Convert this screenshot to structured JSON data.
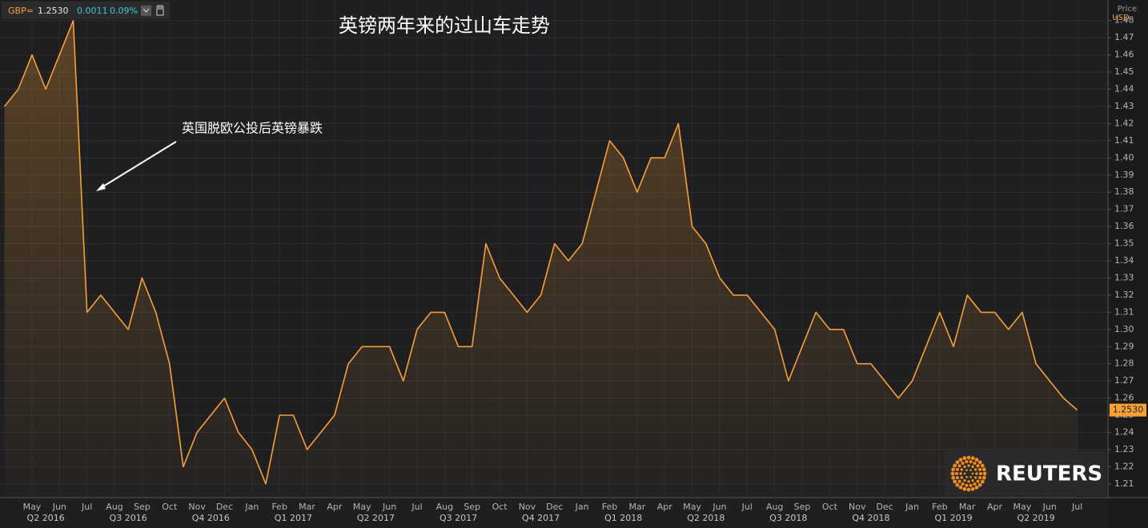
{
  "chart_data": {
    "type": "line",
    "title": "英镑两年来的过山车走势",
    "annotation": "英国脱欧公投后英镑暴跌",
    "ticker": "GBP=",
    "price": "1.2530",
    "change": "0.0011",
    "change_pct": "0.09%",
    "axis_title": "Price",
    "axis_unit": "USD",
    "logo": "REUTERS",
    "categories": [
      null,
      null,
      null,
      null,
      null,
      null,
      null,
      null,
      null,
      null,
      null,
      null,
      null,
      null,
      null,
      null,
      null,
      null,
      null,
      null,
      null,
      null,
      null,
      null,
      null,
      null,
      null,
      null,
      null,
      null,
      null,
      null,
      null,
      null,
      null,
      null,
      null,
      null,
      null,
      null,
      null,
      null,
      null,
      null,
      null,
      null,
      null,
      null,
      null,
      null,
      null,
      null,
      null,
      null,
      null,
      null,
      null,
      null,
      null,
      null,
      null,
      null,
      null,
      null,
      null,
      null,
      null,
      null,
      null,
      null,
      null,
      null,
      null,
      null,
      null,
      null,
      null,
      null,
      null
    ],
    "series": [
      {
        "name": "GBP=",
        "color": "#f7a035",
        "values": [
          1.43,
          1.44,
          1.46,
          1.44,
          1.46,
          1.48,
          1.31,
          1.32,
          1.31,
          1.3,
          1.33,
          1.31,
          1.28,
          1.22,
          1.24,
          1.25,
          1.26,
          1.24,
          1.23,
          1.21,
          1.25,
          1.25,
          1.23,
          1.24,
          1.25,
          1.28,
          1.29,
          1.29,
          1.29,
          1.27,
          1.3,
          1.31,
          1.31,
          1.29,
          1.29,
          1.35,
          1.33,
          1.32,
          1.31,
          1.32,
          1.35,
          1.34,
          1.35,
          1.38,
          1.41,
          1.4,
          1.38,
          1.4,
          1.4,
          1.42,
          1.36,
          1.35,
          1.33,
          1.32,
          1.32,
          1.31,
          1.3,
          1.27,
          1.29,
          1.31,
          1.3,
          1.3,
          1.28,
          1.28,
          1.27,
          1.26,
          1.27,
          1.29,
          1.31,
          1.29,
          1.32,
          1.31,
          1.31,
          1.3,
          1.31,
          1.28,
          1.27,
          1.26,
          1.253
        ]
      }
    ],
    "ylim": [
      1.202,
      1.492
    ],
    "yticks": [
      1.21,
      1.22,
      1.23,
      1.24,
      1.25,
      1.26,
      1.27,
      1.28,
      1.29,
      {
        "value": 1.3,
        "label": "1.30"
      },
      1.31,
      1.32,
      1.33,
      1.34,
      1.35,
      1.36,
      1.37,
      1.38,
      1.39,
      {
        "value": 1.4,
        "label": "1.40"
      },
      1.41,
      1.42,
      1.43,
      1.44,
      1.45,
      1.46,
      1.47,
      1.48
    ],
    "xticks": [
      {
        "value": 2,
        "label": "May"
      },
      {
        "value": 4,
        "label": "Jun"
      },
      {
        "value": 6,
        "label": "Jul"
      },
      {
        "value": 8,
        "label": "Aug"
      },
      {
        "value": 10,
        "label": "Sep"
      },
      {
        "value": 12,
        "label": "Oct"
      },
      {
        "value": 14,
        "label": "Nov"
      },
      {
        "value": 16,
        "label": "Dec"
      },
      {
        "value": 18,
        "label": "Jan"
      },
      {
        "value": 20,
        "label": "Feb"
      },
      {
        "value": 22,
        "label": "Mar"
      },
      {
        "value": 24,
        "label": "Apr"
      },
      {
        "value": 26,
        "label": "May"
      },
      {
        "value": 28,
        "label": "Jun"
      },
      {
        "value": 30,
        "label": "Jul"
      },
      {
        "value": 32,
        "label": "Aug"
      },
      {
        "value": 34,
        "label": "Sep"
      },
      {
        "value": 36,
        "label": "Oct"
      },
      {
        "value": 38,
        "label": "Nov"
      },
      {
        "value": 40,
        "label": "Dec"
      },
      {
        "value": 42,
        "label": "Jan"
      },
      {
        "value": 44,
        "label": "Feb"
      },
      {
        "value": 46,
        "label": "Mar"
      },
      {
        "value": 48,
        "label": "Apr"
      },
      {
        "value": 50,
        "label": "May"
      },
      {
        "value": 52,
        "label": "Jun"
      },
      {
        "value": 54,
        "label": "Jul"
      },
      {
        "value": 56,
        "label": "Aug"
      },
      {
        "value": 58,
        "label": "Sep"
      },
      {
        "value": 60,
        "label": "Oct"
      },
      {
        "value": 62,
        "label": "Nov"
      },
      {
        "value": 64,
        "label": "Dec"
      },
      {
        "value": 66,
        "label": "Jan"
      },
      {
        "value": 68,
        "label": "Feb"
      },
      {
        "value": 70,
        "label": "Mar"
      },
      {
        "value": 72,
        "label": "Apr"
      },
      {
        "value": 74,
        "label": "May"
      },
      {
        "value": 76,
        "label": "Jun"
      },
      {
        "value": 78,
        "label": "Jul"
      }
    ],
    "quarter_labels": [
      {
        "value": 3,
        "label": "Q2 2016"
      },
      {
        "value": 9,
        "label": "Q3 2016"
      },
      {
        "value": 15,
        "label": "Q4 2016"
      },
      {
        "value": 21,
        "label": "Q1 2017"
      },
      {
        "value": 27,
        "label": "Q2 2017"
      },
      {
        "value": 33,
        "label": "Q3 2017"
      },
      {
        "value": 39,
        "label": "Q4 2017"
      },
      {
        "value": 45,
        "label": "Q1 2018"
      },
      {
        "value": 51,
        "label": "Q2 2018"
      },
      {
        "value": 57,
        "label": "Q3 2018"
      },
      {
        "value": 63,
        "label": "Q4 2018"
      },
      {
        "value": 69,
        "label": "Q1 2019"
      },
      {
        "value": 75,
        "label": "Q2 2019"
      }
    ],
    "grid": true
  }
}
